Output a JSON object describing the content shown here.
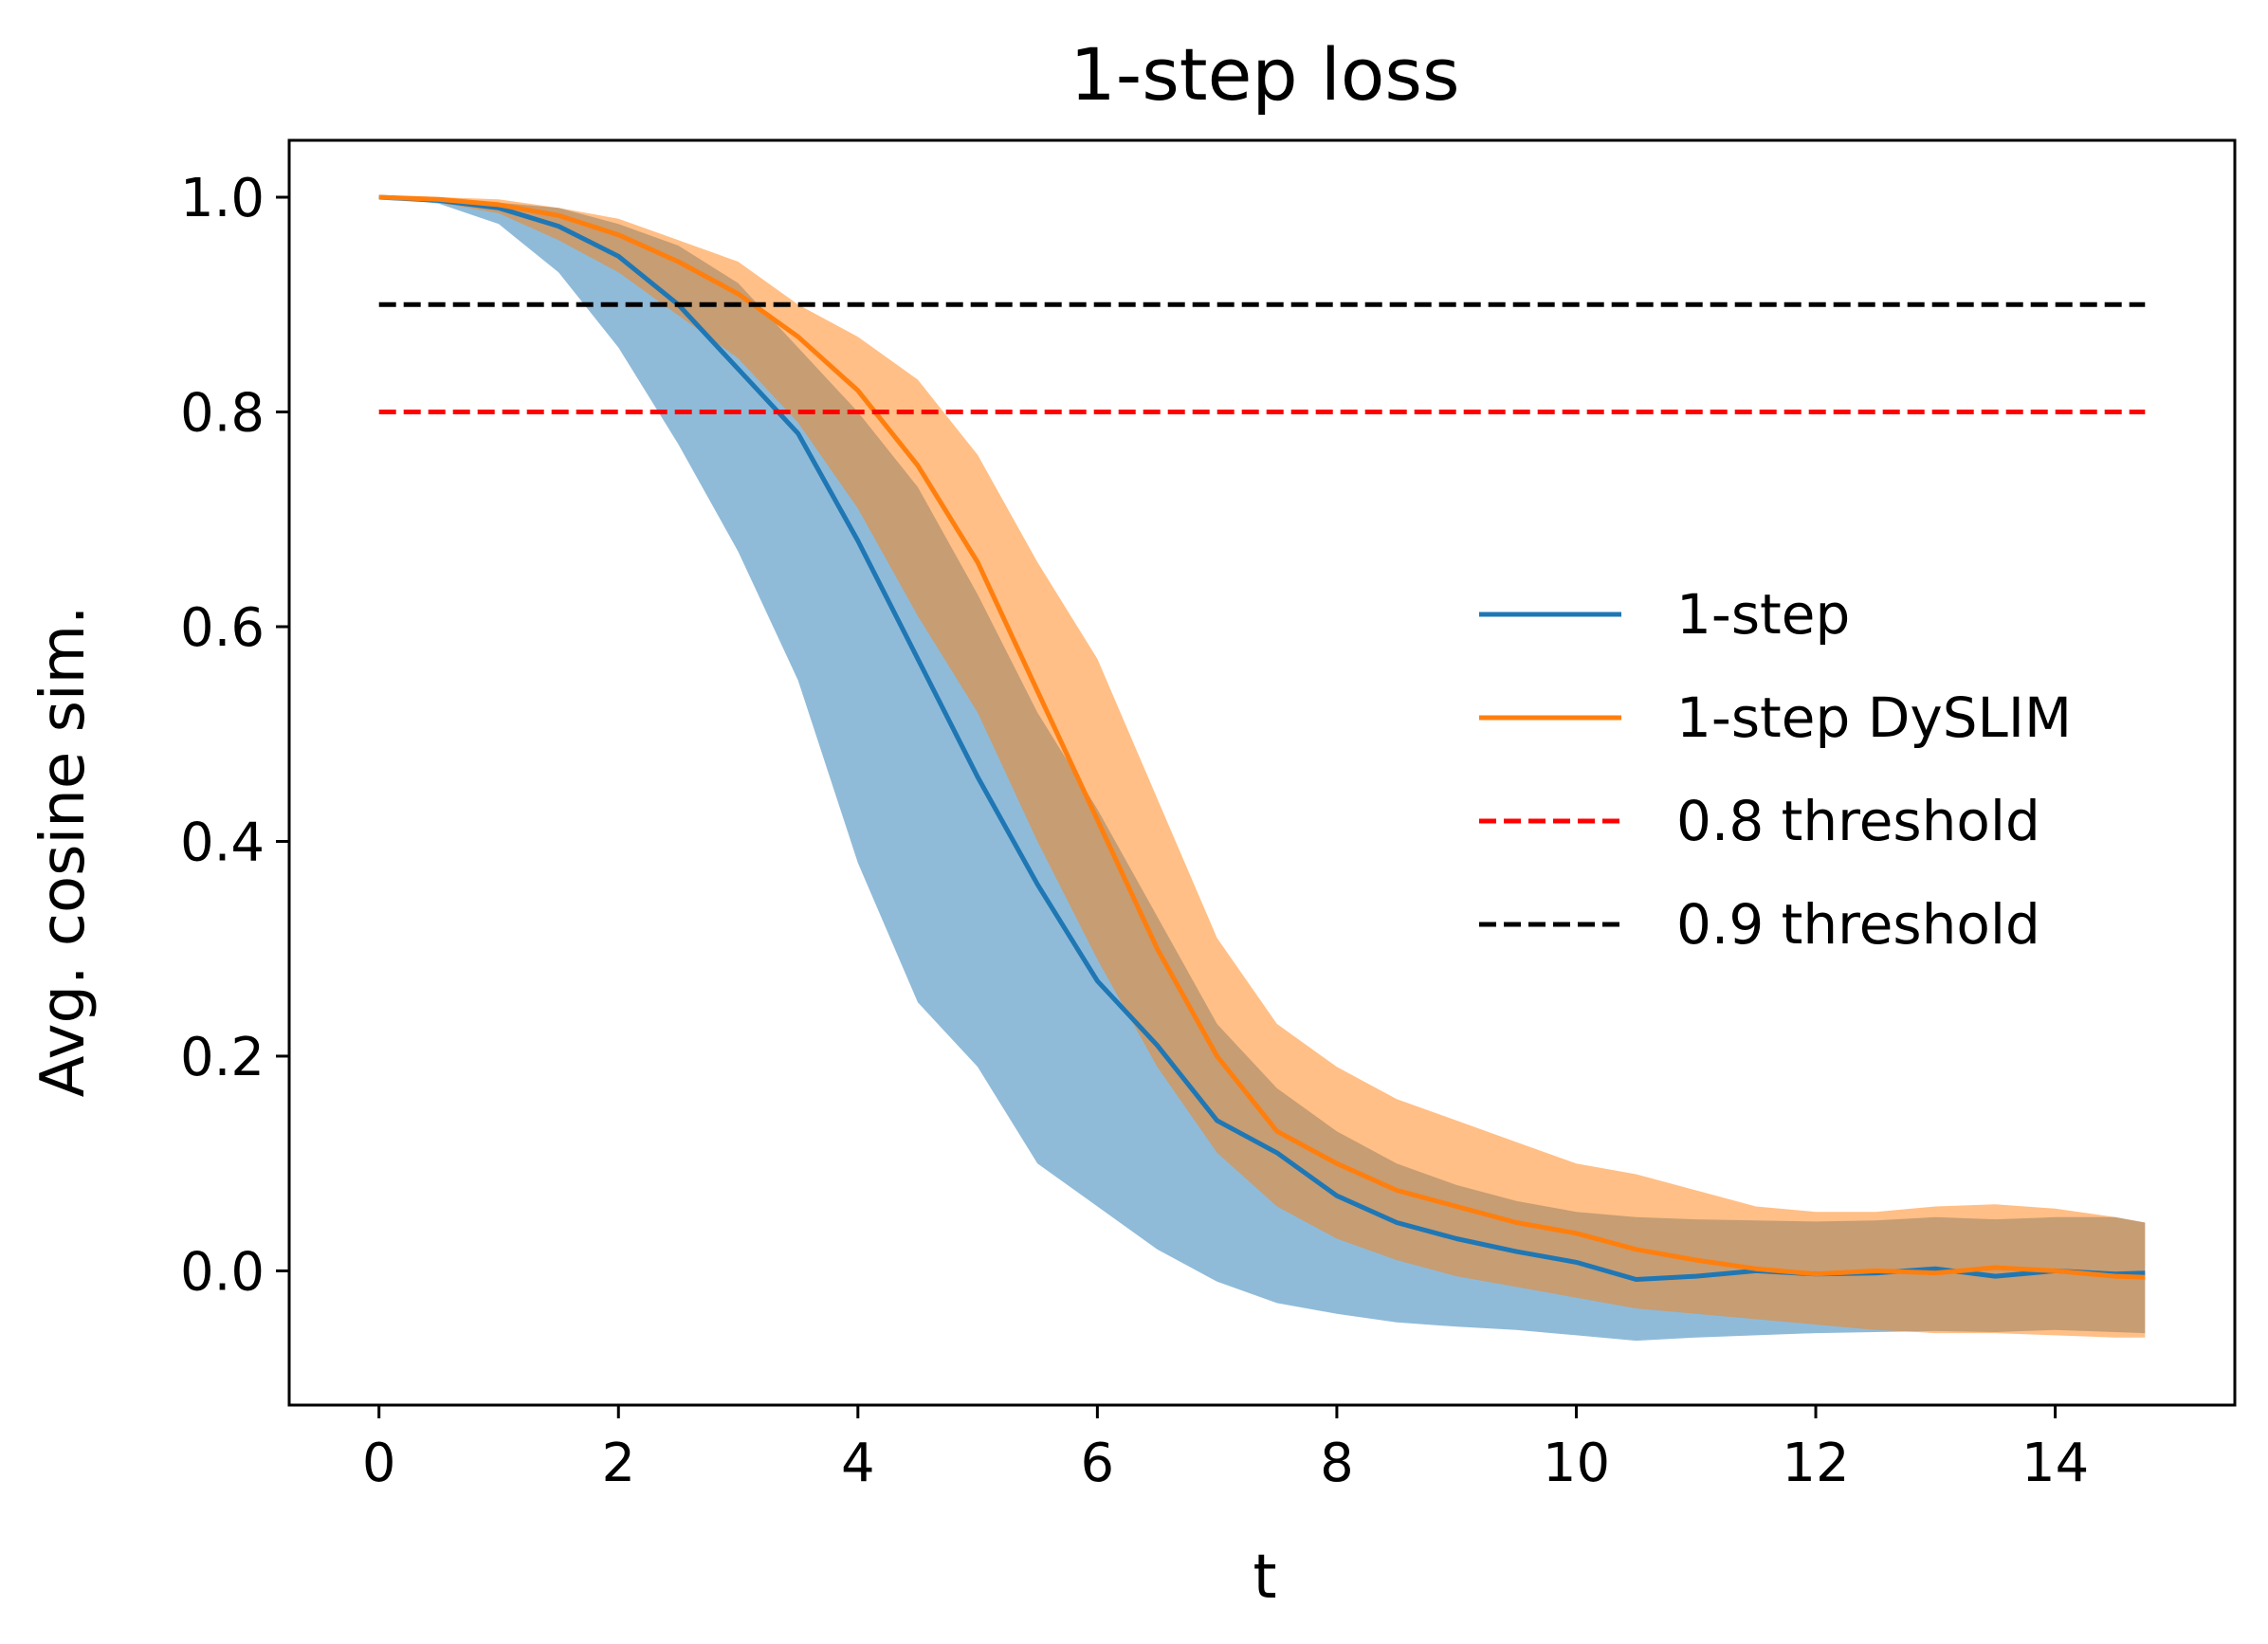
{
  "chart_data": {
    "type": "line",
    "title": "1-step loss",
    "xlabel": "t",
    "ylabel": "Avg. cosine sim.",
    "xlim": [
      -0.75,
      15.5
    ],
    "ylim": [
      -0.125,
      1.053
    ],
    "xticks": [
      0,
      2,
      4,
      6,
      8,
      10,
      12,
      14
    ],
    "xtick_labels": [
      "0",
      "2",
      "4",
      "6",
      "8",
      "10",
      "12",
      "14"
    ],
    "yticks": [
      0.0,
      0.2,
      0.4,
      0.6,
      0.8,
      1.0
    ],
    "ytick_labels": [
      "0.0",
      "0.2",
      "0.4",
      "0.6",
      "0.8",
      "1.0"
    ],
    "grid": false,
    "legend_position": "center-right",
    "series": [
      {
        "name": "1-step",
        "color": "#1f77b4",
        "style": "solid",
        "x": [
          0,
          0.5,
          1,
          1.5,
          2,
          2.5,
          3,
          3.5,
          4,
          4.5,
          5,
          5.5,
          6,
          6.5,
          7,
          7.5,
          8,
          8.5,
          9,
          9.5,
          10,
          10.5,
          11,
          11.5,
          12,
          12.5,
          13,
          13.5,
          14,
          14.5,
          14.75
        ],
        "y": [
          1.0,
          0.997,
          0.99,
          0.973,
          0.945,
          0.9,
          0.84,
          0.78,
          0.68,
          0.57,
          0.46,
          0.36,
          0.27,
          0.21,
          0.14,
          0.11,
          0.07,
          0.045,
          0.03,
          0.018,
          0.008,
          -0.008,
          -0.005,
          0.0,
          -0.003,
          -0.002,
          0.002,
          -0.005,
          0.0,
          -0.003,
          -0.002
        ],
        "lower": [
          1.0,
          0.994,
          0.975,
          0.93,
          0.86,
          0.77,
          0.67,
          0.55,
          0.38,
          0.25,
          0.19,
          0.1,
          0.06,
          0.02,
          -0.01,
          -0.03,
          -0.04,
          -0.048,
          -0.052,
          -0.055,
          -0.06,
          -0.065,
          -0.062,
          -0.06,
          -0.058,
          -0.057,
          -0.056,
          -0.057,
          -0.055,
          -0.057,
          -0.058
        ],
        "upper": [
          1.0,
          0.999,
          0.995,
          0.99,
          0.975,
          0.955,
          0.92,
          0.86,
          0.8,
          0.73,
          0.63,
          0.52,
          0.43,
          0.33,
          0.23,
          0.17,
          0.13,
          0.1,
          0.08,
          0.065,
          0.055,
          0.05,
          0.048,
          0.047,
          0.046,
          0.047,
          0.05,
          0.048,
          0.05,
          0.05,
          0.045
        ]
      },
      {
        "name": "1-step DySLIM",
        "color": "#ff7f0e",
        "style": "solid",
        "x": [
          0,
          0.5,
          1,
          1.5,
          2,
          2.5,
          3,
          3.5,
          4,
          4.5,
          5,
          5.5,
          6,
          6.5,
          7,
          7.5,
          8,
          8.5,
          9,
          9.5,
          10,
          10.5,
          11,
          11.5,
          12,
          12.5,
          13,
          13.5,
          14,
          14.5,
          14.75
        ],
        "y": [
          1.0,
          0.998,
          0.993,
          0.983,
          0.965,
          0.94,
          0.91,
          0.87,
          0.82,
          0.75,
          0.66,
          0.54,
          0.42,
          0.3,
          0.2,
          0.13,
          0.1,
          0.075,
          0.06,
          0.045,
          0.035,
          0.02,
          0.01,
          0.002,
          -0.003,
          0.0,
          -0.002,
          0.003,
          0.0,
          -0.005,
          -0.006
        ],
        "lower": [
          1.0,
          0.995,
          0.985,
          0.96,
          0.93,
          0.89,
          0.85,
          0.79,
          0.71,
          0.61,
          0.52,
          0.4,
          0.29,
          0.19,
          0.11,
          0.06,
          0.03,
          0.01,
          -0.005,
          -0.015,
          -0.025,
          -0.035,
          -0.04,
          -0.045,
          -0.05,
          -0.055,
          -0.058,
          -0.058,
          -0.06,
          -0.062,
          -0.062
        ],
        "upper": [
          1.0,
          1.0,
          0.998,
          0.99,
          0.98,
          0.96,
          0.94,
          0.9,
          0.87,
          0.83,
          0.76,
          0.66,
          0.57,
          0.44,
          0.31,
          0.23,
          0.19,
          0.16,
          0.14,
          0.12,
          0.1,
          0.09,
          0.075,
          0.06,
          0.055,
          0.055,
          0.06,
          0.062,
          0.058,
          0.05,
          0.045
        ]
      },
      {
        "name": "0.8 threshold",
        "color": "#ff0000",
        "style": "dashed",
        "x": [
          0,
          14.75
        ],
        "y": [
          0.8,
          0.8
        ]
      },
      {
        "name": "0.9 threshold",
        "color": "#000000",
        "style": "dashed",
        "x": [
          0,
          14.75
        ],
        "y": [
          0.9,
          0.9
        ]
      }
    ]
  }
}
